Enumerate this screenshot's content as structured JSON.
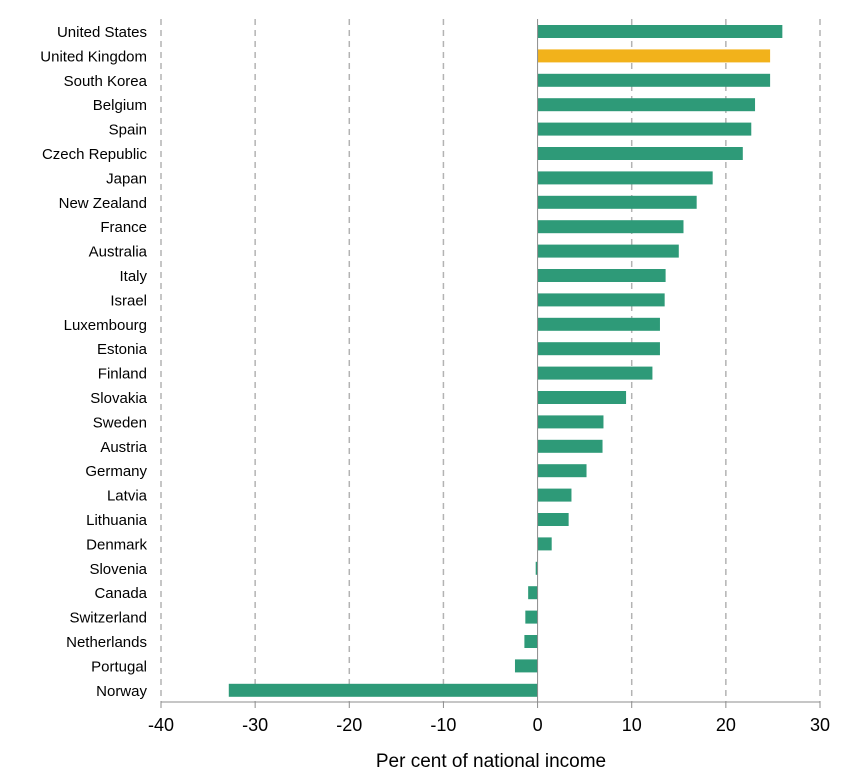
{
  "chart_data": {
    "type": "bar",
    "orientation": "horizontal",
    "title": "",
    "xlabel": "Per cent of national income",
    "ylabel": "",
    "xlim": [
      -40,
      30
    ],
    "xticks": [
      -40,
      -30,
      -20,
      -10,
      0,
      10,
      20,
      30
    ],
    "grid": "vertical dashed",
    "categories": [
      "United States",
      "United Kingdom",
      "South Korea",
      "Belgium",
      "Spain",
      "Czech Republic",
      "Japan",
      "New Zealand",
      "France",
      "Australia",
      "Italy",
      "Israel",
      "Luxembourg",
      "Estonia",
      "Finland",
      "Slovakia",
      "Sweden",
      "Austria",
      "Germany",
      "Latvia",
      "Lithuania",
      "Denmark",
      "Slovenia",
      "Canada",
      "Switzerland",
      "Netherlands",
      "Portugal",
      "Norway"
    ],
    "values": [
      26.0,
      24.7,
      24.7,
      23.1,
      22.7,
      21.8,
      18.6,
      16.9,
      15.5,
      15.0,
      13.6,
      13.5,
      13.0,
      13.0,
      12.2,
      9.4,
      7.0,
      6.9,
      5.2,
      3.6,
      3.3,
      1.5,
      -0.2,
      -1.0,
      -1.3,
      -1.4,
      -2.4,
      -32.8
    ],
    "highlight": "United Kingdom",
    "colors": {
      "default": "#2e9a78",
      "highlight": "#f2b21b",
      "grid": "#b3b3b3",
      "axis": "#8c8c8c"
    }
  }
}
